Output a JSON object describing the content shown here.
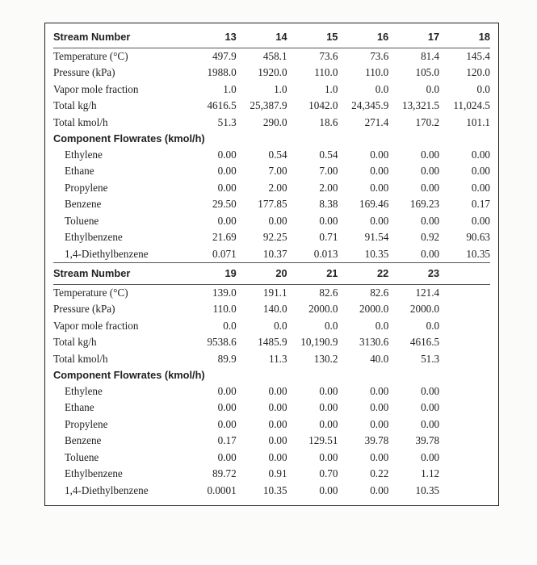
{
  "labels": {
    "stream_number": "Stream Number",
    "temperature": "Temperature (°C)",
    "pressure": "Pressure (kPa)",
    "vapor_mole_fraction": "Vapor mole fraction",
    "total_kgph": "Total kg/h",
    "total_kmolph": "Total kmol/h",
    "component_flowrates": "Component Flowrates (kmol/h)",
    "components": {
      "ethylene": "Ethylene",
      "ethane": "Ethane",
      "propylene": "Propylene",
      "benzene": "Benzene",
      "toluene": "Toluene",
      "ethylbenzene": "Ethylbenzene",
      "diethylbenzene": "1,4-Diethylbenzene"
    }
  },
  "block1": {
    "streams": [
      "13",
      "14",
      "15",
      "16",
      "17",
      "18"
    ],
    "temperature": [
      "497.9",
      "458.1",
      "73.6",
      "73.6",
      "81.4",
      "145.4"
    ],
    "pressure": [
      "1988.0",
      "1920.0",
      "110.0",
      "110.0",
      "105.0",
      "120.0"
    ],
    "vapor_mole_fraction": [
      "1.0",
      "1.0",
      "1.0",
      "0.0",
      "0.0",
      "0.0"
    ],
    "total_kgph": [
      "4616.5",
      "25,387.9",
      "1042.0",
      "24,345.9",
      "13,321.5",
      "11,024.5"
    ],
    "total_kmolph": [
      "51.3",
      "290.0",
      "18.6",
      "271.4",
      "170.2",
      "101.1"
    ],
    "components": {
      "ethylene": [
        "0.00",
        "0.54",
        "0.54",
        "0.00",
        "0.00",
        "0.00"
      ],
      "ethane": [
        "0.00",
        "7.00",
        "7.00",
        "0.00",
        "0.00",
        "0.00"
      ],
      "propylene": [
        "0.00",
        "2.00",
        "2.00",
        "0.00",
        "0.00",
        "0.00"
      ],
      "benzene": [
        "29.50",
        "177.85",
        "8.38",
        "169.46",
        "169.23",
        "0.17"
      ],
      "toluene": [
        "0.00",
        "0.00",
        "0.00",
        "0.00",
        "0.00",
        "0.00"
      ],
      "ethylbenzene": [
        "21.69",
        "92.25",
        "0.71",
        "91.54",
        "0.92",
        "90.63"
      ],
      "diethylbenzene": [
        "0.071",
        "10.37",
        "0.013",
        "10.35",
        "0.00",
        "10.35"
      ]
    }
  },
  "block2": {
    "streams": [
      "19",
      "20",
      "21",
      "22",
      "23"
    ],
    "temperature": [
      "139.0",
      "191.1",
      "82.6",
      "82.6",
      "121.4"
    ],
    "pressure": [
      "110.0",
      "140.0",
      "2000.0",
      "2000.0",
      "2000.0"
    ],
    "vapor_mole_fraction": [
      "0.0",
      "0.0",
      "0.0",
      "0.0",
      "0.0"
    ],
    "total_kgph": [
      "9538.6",
      "1485.9",
      "10,190.9",
      "3130.6",
      "4616.5"
    ],
    "total_kmolph": [
      "89.9",
      "11.3",
      "130.2",
      "40.0",
      "51.3"
    ],
    "components": {
      "ethylene": [
        "0.00",
        "0.00",
        "0.00",
        "0.00",
        "0.00"
      ],
      "ethane": [
        "0.00",
        "0.00",
        "0.00",
        "0.00",
        "0.00"
      ],
      "propylene": [
        "0.00",
        "0.00",
        "0.00",
        "0.00",
        "0.00"
      ],
      "benzene": [
        "0.17",
        "0.00",
        "129.51",
        "39.78",
        "39.78"
      ],
      "toluene": [
        "0.00",
        "0.00",
        "0.00",
        "0.00",
        "0.00"
      ],
      "ethylbenzene": [
        "89.72",
        "0.91",
        "0.70",
        "0.22",
        "1.12"
      ],
      "diethylbenzene": [
        "0.0001",
        "10.35",
        "0.00",
        "0.00",
        "10.35"
      ]
    }
  }
}
